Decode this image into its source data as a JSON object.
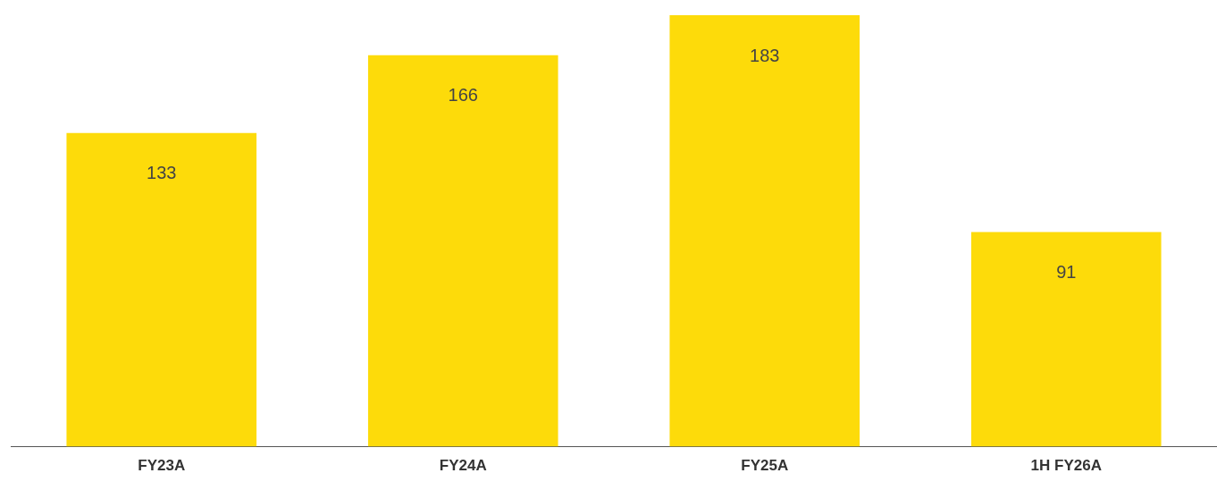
{
  "chart_data": {
    "type": "bar",
    "categories": [
      "FY23A",
      "FY24A",
      "FY25A",
      "1H FY26A"
    ],
    "values": [
      133,
      166,
      183,
      91
    ],
    "color": "#fddb0a",
    "data_labels": true,
    "grid": false,
    "legend": false
  }
}
